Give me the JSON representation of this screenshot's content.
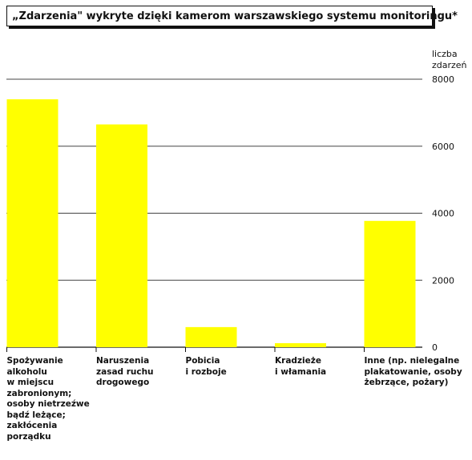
{
  "chart_data": {
    "type": "bar",
    "title": "„Zdarzenia\" wykryte dzięki kamerom warszawskiego systemu monitoringu*",
    "ylabel_lines": [
      "liczba",
      "zdarzeń"
    ],
    "categories": [
      [
        "Spożywanie",
        "alkoholu",
        "w miejscu",
        "zabronionym;",
        "osoby nietrzeźwe",
        "bądź leżące;",
        "zakłócenia",
        "porządku"
      ],
      [
        "Naruszenia",
        "zasad ruchu",
        "drogowego"
      ],
      [
        "Pobicia",
        "i rozboje"
      ],
      [
        "Kradzieże",
        "i włamania"
      ],
      [
        "Inne (np. nielegalne",
        "plakatowanie, osoby",
        "żebrzące, pożary)"
      ]
    ],
    "values": [
      7400,
      6650,
      600,
      120,
      3770
    ],
    "ylim": [
      0,
      8000
    ],
    "yticks": [
      0,
      2000,
      4000,
      6000,
      8000
    ],
    "ytick_labels": [
      "0",
      "2000",
      "4000",
      "6000",
      "8000"
    ],
    "grid": true,
    "colors": {
      "bar": "#ffff00",
      "grid": "#444444",
      "text": "#111111"
    }
  }
}
